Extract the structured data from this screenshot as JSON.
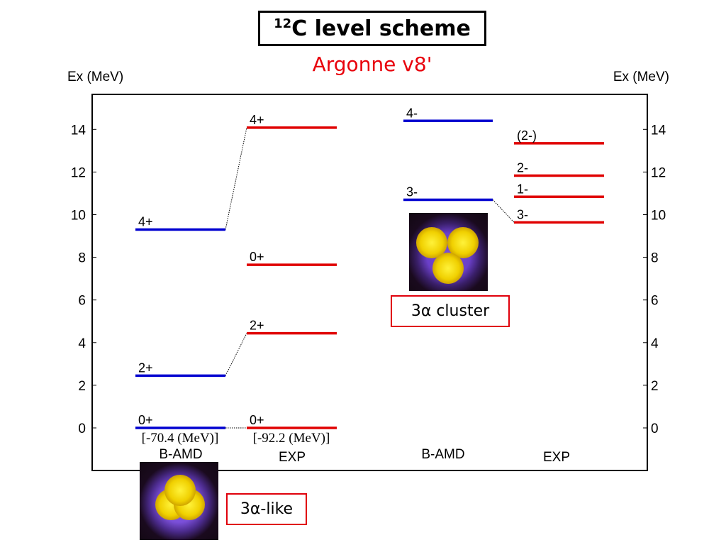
{
  "title": {
    "mass_number": "12",
    "text": "C level scheme"
  },
  "subtitle": "Argonne v8'",
  "chart_data": {
    "type": "level-scheme",
    "yaxis": {
      "left_label": "Ex (MeV)",
      "right_label": "Ex (MeV)",
      "ylim": [
        -2,
        16
      ],
      "ticks": [
        0,
        2,
        4,
        6,
        8,
        10,
        12,
        14
      ]
    },
    "columns": [
      {
        "id": "bamd_pos",
        "label": "B-AMD",
        "color": "#0000d0",
        "sublabel": "[-70.4 (MeV)]",
        "levels": [
          {
            "label": "0+",
            "energy": 0
          },
          {
            "label": "2+",
            "energy": 2.45
          },
          {
            "label": "4+",
            "energy": 9.3
          }
        ]
      },
      {
        "id": "exp_pos",
        "label": "EXP",
        "color": "#e00000",
        "sublabel": "[-92.2 (MeV)]",
        "levels": [
          {
            "label": "0+",
            "energy": 0
          },
          {
            "label": "2+",
            "energy": 4.44
          },
          {
            "label": "0+",
            "energy": 7.65
          },
          {
            "label": "4+",
            "energy": 14.08
          }
        ]
      },
      {
        "id": "bamd_neg",
        "label": "B-AMD",
        "color": "#0000d0",
        "levels": [
          {
            "label": "3-",
            "energy": 10.7
          },
          {
            "label": "4-",
            "energy": 14.4
          }
        ]
      },
      {
        "id": "exp_neg",
        "label": "EXP",
        "color": "#e00000",
        "levels": [
          {
            "label": "3-",
            "energy": 9.64
          },
          {
            "label": "1-",
            "energy": 10.84
          },
          {
            "label": "2-",
            "energy": 11.83
          },
          {
            "label": "(2-)",
            "energy": 13.35
          }
        ]
      }
    ],
    "connections": [
      {
        "from": [
          "bamd_pos",
          0
        ],
        "to": [
          "exp_pos",
          0
        ]
      },
      {
        "from": [
          "bamd_pos",
          1
        ],
        "to": [
          "exp_pos",
          1
        ]
      },
      {
        "from": [
          "bamd_pos",
          2
        ],
        "to": [
          "exp_pos",
          3
        ]
      },
      {
        "from": [
          "bamd_neg",
          0
        ],
        "to": [
          "exp_neg",
          0
        ]
      }
    ]
  },
  "annotations": {
    "cluster_label": "3α cluster",
    "like_label": "3α-like"
  },
  "colors": {
    "theory": "#0000d0",
    "experiment": "#e00000",
    "accent_box": "#e0000b"
  }
}
